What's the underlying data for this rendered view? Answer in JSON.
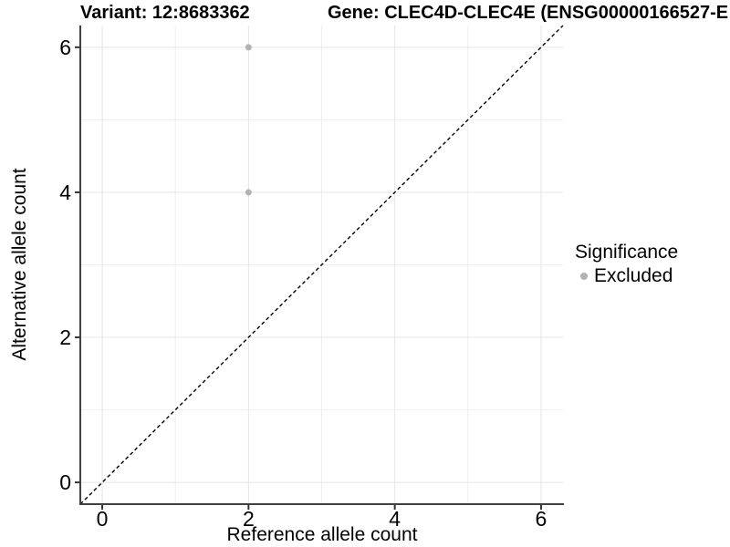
{
  "header": {
    "variant_title": "Variant: 12:8683362",
    "gene_title": "Gene: CLEC4D-CLEC4E (ENSG00000166527-E"
  },
  "chart_data": {
    "type": "scatter",
    "xlabel": "Reference allele count",
    "ylabel": "Alternative allele count",
    "xlim": [
      -0.3,
      6.3
    ],
    "ylim": [
      -0.3,
      6.3
    ],
    "x_ticks": [
      0,
      2,
      4,
      6
    ],
    "y_ticks": [
      0,
      2,
      4,
      6
    ],
    "x_minor_ticks": [
      1,
      3,
      5
    ],
    "y_minor_ticks": [
      1,
      3,
      5
    ],
    "grid": "on",
    "reference_line": {
      "kind": "identity",
      "style": "dashed",
      "from": [
        -0.3,
        -0.3
      ],
      "to": [
        6.3,
        6.3
      ]
    },
    "series": [
      {
        "name": "Excluded",
        "color": "#b2b2b2",
        "points": [
          {
            "x": 2,
            "y": 6
          },
          {
            "x": 2,
            "y": 4
          }
        ]
      }
    ],
    "legend": {
      "title": "Significance",
      "position": "right",
      "items": [
        {
          "label": "Excluded",
          "color": "#b2b2b2",
          "icon": "point-icon"
        }
      ]
    },
    "colors": {
      "background": "#ffffff",
      "text": "#000000",
      "axis_line": "#404040",
      "tick_mark": "#333333",
      "grid_major": "#e4e4e4",
      "grid_minor": "#efefef",
      "reference_line": "#000000",
      "point": "#b2b2b2"
    }
  }
}
